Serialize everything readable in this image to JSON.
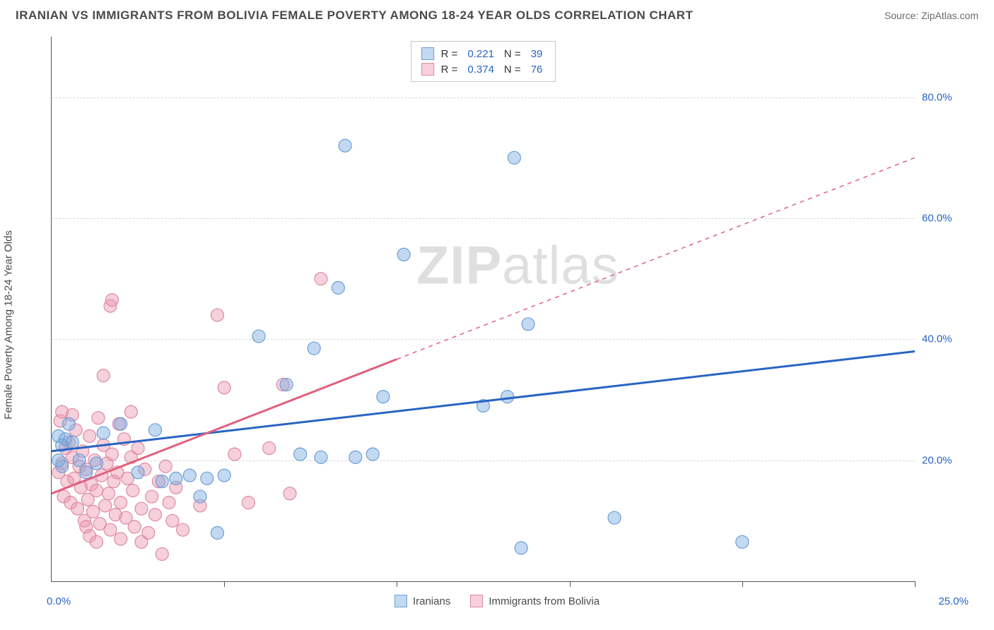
{
  "title": "IRANIAN VS IMMIGRANTS FROM BOLIVIA FEMALE POVERTY AMONG 18-24 YEAR OLDS CORRELATION CHART",
  "source": "Source: ZipAtlas.com",
  "watermark_a": "ZIP",
  "watermark_b": "atlas",
  "chart": {
    "type": "scatter",
    "ylabel": "Female Poverty Among 18-24 Year Olds",
    "xlim": [
      0,
      25
    ],
    "ylim": [
      0,
      90
    ],
    "xtick_interval": 5,
    "yticks": [
      20,
      40,
      60,
      80
    ],
    "ytick_suffix": ".0%",
    "xlabel_min": "0.0%",
    "xlabel_max": "25.0%",
    "background_color": "#ffffff",
    "grid_color": "#d8d8d8",
    "axis_color": "#555555",
    "tick_label_color": "#2964c4",
    "label_fontsize": 15,
    "title_fontsize": 17,
    "marker_radius": 9,
    "series": [
      {
        "name": "Iranians",
        "fill": "rgba(120,170,225,0.45)",
        "stroke": "#6d9fd6",
        "trend_color": "#2964c4",
        "trend_width": 3,
        "trend_y_at_xmin": 21.5,
        "trend_y_at_xmax": 38.0,
        "r": "0.221",
        "n": "39",
        "points": [
          [
            0.2,
            24
          ],
          [
            0.3,
            22.5
          ],
          [
            0.3,
            19
          ],
          [
            0.4,
            23.5
          ],
          [
            0.6,
            23
          ],
          [
            0.8,
            20
          ],
          [
            1.0,
            18
          ],
          [
            1.3,
            19.5
          ],
          [
            1.5,
            24.5
          ],
          [
            2.0,
            26
          ],
          [
            2.5,
            18
          ],
          [
            3.0,
            25
          ],
          [
            3.2,
            16.5
          ],
          [
            3.6,
            17
          ],
          [
            4.0,
            17.5
          ],
          [
            4.3,
            14
          ],
          [
            4.5,
            17
          ],
          [
            4.8,
            8
          ],
          [
            5.0,
            17.5
          ],
          [
            6.0,
            40.5
          ],
          [
            6.8,
            32.5
          ],
          [
            7.2,
            21
          ],
          [
            7.6,
            38.5
          ],
          [
            7.8,
            20.5
          ],
          [
            8.3,
            48.5
          ],
          [
            8.5,
            72
          ],
          [
            8.8,
            20.5
          ],
          [
            9.3,
            21
          ],
          [
            9.6,
            30.5
          ],
          [
            10.2,
            54
          ],
          [
            12.5,
            29
          ],
          [
            13.2,
            30.5
          ],
          [
            13.4,
            70
          ],
          [
            13.6,
            5.5
          ],
          [
            13.8,
            42.5
          ],
          [
            16.3,
            10.5
          ],
          [
            20.0,
            6.5
          ],
          [
            0.5,
            26
          ],
          [
            0.2,
            20
          ]
        ]
      },
      {
        "name": "Immigrants from Bolivia",
        "fill": "rgba(235,150,175,0.45)",
        "stroke": "#de8aa2",
        "trend_color": "#e0617f",
        "trend_width": 3,
        "trend_y_at_xmin": 14.5,
        "trend_y_at_xmax": 70.0,
        "trend_solid_until_x": 10,
        "r": "0.374",
        "n": "76",
        "points": [
          [
            0.2,
            18
          ],
          [
            0.3,
            19.5
          ],
          [
            0.35,
            14
          ],
          [
            0.4,
            22
          ],
          [
            0.45,
            16.5
          ],
          [
            0.5,
            23
          ],
          [
            0.55,
            13
          ],
          [
            0.6,
            20.5
          ],
          [
            0.65,
            17
          ],
          [
            0.7,
            25
          ],
          [
            0.75,
            12
          ],
          [
            0.8,
            19
          ],
          [
            0.85,
            15.5
          ],
          [
            0.9,
            21.5
          ],
          [
            0.95,
            10
          ],
          [
            1.0,
            18.5
          ],
          [
            1.05,
            13.5
          ],
          [
            1.1,
            24
          ],
          [
            1.15,
            16
          ],
          [
            1.2,
            11.5
          ],
          [
            1.25,
            20
          ],
          [
            1.3,
            15
          ],
          [
            1.35,
            27
          ],
          [
            1.4,
            9.5
          ],
          [
            1.45,
            17.5
          ],
          [
            1.5,
            22.5
          ],
          [
            1.55,
            12.5
          ],
          [
            1.6,
            19.5
          ],
          [
            1.65,
            14.5
          ],
          [
            1.7,
            8.5
          ],
          [
            1.75,
            21
          ],
          [
            1.8,
            16.5
          ],
          [
            1.85,
            11
          ],
          [
            1.9,
            18
          ],
          [
            1.95,
            26
          ],
          [
            2.0,
            13
          ],
          [
            2.1,
            23.5
          ],
          [
            2.15,
            10.5
          ],
          [
            2.2,
            17
          ],
          [
            2.3,
            20.5
          ],
          [
            2.35,
            15
          ],
          [
            2.4,
            9
          ],
          [
            2.5,
            22
          ],
          [
            2.6,
            12
          ],
          [
            2.7,
            18.5
          ],
          [
            2.8,
            8
          ],
          [
            2.9,
            14
          ],
          [
            3.0,
            11
          ],
          [
            3.1,
            16.5
          ],
          [
            3.2,
            4.5
          ],
          [
            3.3,
            19
          ],
          [
            3.5,
            10
          ],
          [
            3.6,
            15.5
          ],
          [
            3.8,
            8.5
          ],
          [
            1.5,
            34
          ],
          [
            1.7,
            45.5
          ],
          [
            1.75,
            46.5
          ],
          [
            2.3,
            28
          ],
          [
            4.3,
            12.5
          ],
          [
            4.8,
            44
          ],
          [
            5.0,
            32
          ],
          [
            5.3,
            21
          ],
          [
            5.7,
            13
          ],
          [
            6.3,
            22
          ],
          [
            6.7,
            32.5
          ],
          [
            6.9,
            14.5
          ],
          [
            7.8,
            50
          ],
          [
            0.25,
            26.5
          ],
          [
            0.3,
            28
          ],
          [
            0.6,
            27.5
          ],
          [
            1.0,
            9
          ],
          [
            1.1,
            7.5
          ],
          [
            1.3,
            6.5
          ],
          [
            2.0,
            7
          ],
          [
            2.6,
            6.5
          ],
          [
            3.4,
            13
          ]
        ]
      }
    ]
  },
  "legend_top_label_r": "R  =",
  "legend_top_label_n": "N  =",
  "legend_bottom": {
    "items": [
      "Iranians",
      "Immigrants from Bolivia"
    ]
  }
}
